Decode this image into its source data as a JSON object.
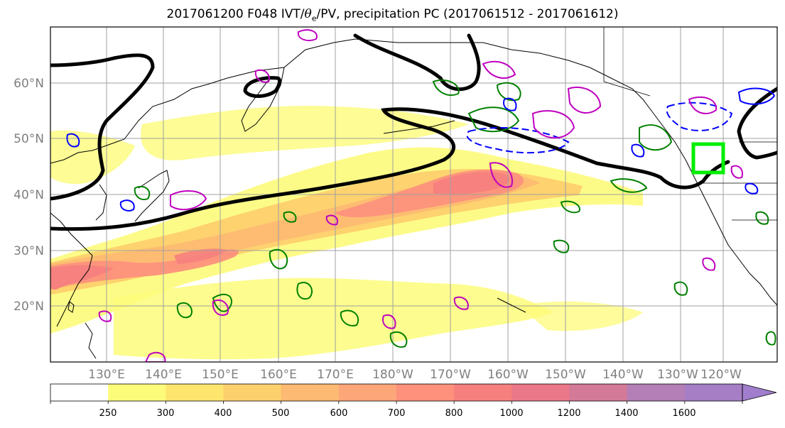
{
  "title": {
    "prefix": "2017061200 F048 IVT/",
    "theta": "θ",
    "theta_sub": "e",
    "suffix": "/PV, precipitation PC (2017061512 - 2017061612)"
  },
  "lat_labels": [
    "60°N",
    "50°N",
    "40°N",
    "30°N",
    "20°N"
  ],
  "lon_labels": [
    "130°E",
    "140°E",
    "150°E",
    "160°E",
    "170°E",
    "180°W",
    "170°W",
    "160°W",
    "150°W",
    "140°W",
    "130°W",
    "120°W"
  ],
  "colorbar": {
    "ticks": [
      "250",
      "300",
      "400",
      "500",
      "600",
      "700",
      "800",
      "1000",
      "1200",
      "1400",
      "1600"
    ],
    "colors": [
      "#ffffff",
      "#fdfb7a",
      "#fde56e",
      "#fdd06e",
      "#fdba72",
      "#fda679",
      "#fd917c",
      "#f6807e",
      "#ea7888",
      "#d37a98",
      "#b47eb6",
      "#a57ec6",
      "#a07ecd"
    ]
  },
  "legend_colors": {
    "ivt_contour": "#000000",
    "theta_e_pos": "#008000",
    "theta_e_neg": "#0000ff",
    "pv": "#bf00bf",
    "target_box": "#00ee00"
  }
}
